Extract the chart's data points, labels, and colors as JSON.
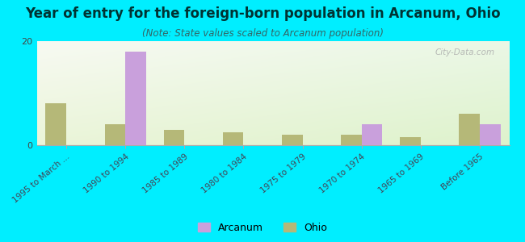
{
  "title": "Year of entry for the foreign-born population in Arcanum, Ohio",
  "subtitle": "(Note: State values scaled to Arcanum population)",
  "categories": [
    "1995 to March ...",
    "1990 to 1994",
    "1985 to 1989",
    "1980 to 1984",
    "1975 to 1979",
    "1970 to 1974",
    "1965 to 1969",
    "Before 1965"
  ],
  "arcanum_values": [
    0,
    18,
    0,
    0,
    0,
    4,
    0,
    4
  ],
  "ohio_values": [
    8,
    4,
    3,
    2.5,
    2,
    2,
    1.5,
    6
  ],
  "arcanum_color": "#c9a0dc",
  "ohio_color": "#b5b878",
  "background_color": "#00eeff",
  "ylim": [
    0,
    20
  ],
  "yticks": [
    0,
    20
  ],
  "bar_width": 0.35,
  "title_fontsize": 12,
  "subtitle_fontsize": 8.5,
  "watermark": "City-Data.com",
  "legend_arcanum": "Arcanum",
  "legend_ohio": "Ohio",
  "title_color": "#003333",
  "subtitle_color": "#336666"
}
